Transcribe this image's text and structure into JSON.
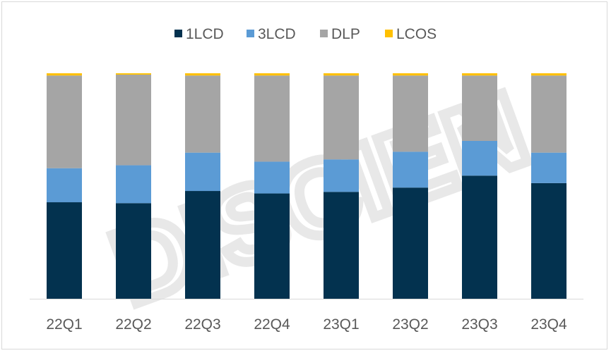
{
  "chart_data": {
    "type": "bar",
    "stacked": true,
    "normalized_percent": true,
    "title": "",
    "xlabel": "",
    "ylabel": "",
    "ylim": [
      0,
      100
    ],
    "grid": false,
    "legend_position": "top",
    "categories": [
      "22Q1",
      "22Q2",
      "22Q3",
      "22Q4",
      "23Q1",
      "23Q2",
      "23Q3",
      "23Q4"
    ],
    "series": [
      {
        "name": "1LCD",
        "color": "#03324f",
        "values": [
          42.8,
          42.4,
          47.8,
          46.7,
          47.4,
          49.3,
          54.6,
          51.3
        ]
      },
      {
        "name": "3LCD",
        "color": "#5b9bd5",
        "values": [
          15.1,
          16.8,
          17.0,
          14.1,
          14.4,
          15.9,
          15.4,
          13.5
        ]
      },
      {
        "name": "DLP",
        "color": "#a5a5a5",
        "values": [
          41.1,
          40.2,
          34.2,
          38.2,
          37.2,
          33.8,
          29.0,
          34.2
        ]
      },
      {
        "name": "LCOS",
        "color": "#ffc000",
        "values": [
          1.0,
          0.6,
          1.0,
          1.0,
          1.0,
          1.0,
          1.0,
          1.0
        ]
      }
    ]
  },
  "watermark": "DISCIEN"
}
